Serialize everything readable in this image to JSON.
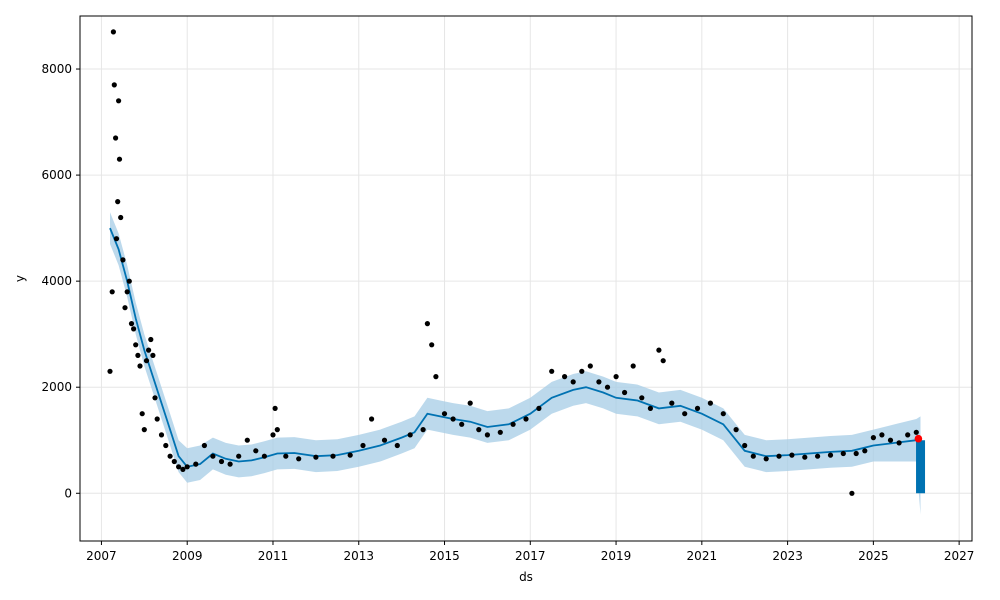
{
  "chart_data": {
    "type": "line",
    "title": "",
    "xlabel": "ds",
    "ylabel": "y",
    "xlim": [
      2006.5,
      2027.3
    ],
    "ylim": [
      -900,
      9000
    ],
    "x_ticks": [
      2007,
      2009,
      2011,
      2013,
      2015,
      2017,
      2019,
      2021,
      2023,
      2025,
      2027
    ],
    "y_ticks": [
      0,
      2000,
      4000,
      6000,
      8000
    ],
    "grid": true,
    "legend": "none",
    "colors": {
      "observed": "#000000",
      "forecast": "#0072B2",
      "uncertainty": "#A6CCE6",
      "highlight": "#FF0000",
      "grid": "#E6E6E6"
    },
    "series": [
      {
        "role": "forecast",
        "x": [
          2007.2,
          2007.4,
          2007.6,
          2007.8,
          2008.0,
          2008.2,
          2008.4,
          2008.6,
          2008.8,
          2009.0,
          2009.3,
          2009.6,
          2009.9,
          2010.2,
          2010.5,
          2010.8,
          2011.1,
          2011.5,
          2012.0,
          2012.5,
          2013.0,
          2013.5,
          2014.0,
          2014.3,
          2014.6,
          2014.9,
          2015.2,
          2015.6,
          2016.0,
          2016.5,
          2017.0,
          2017.5,
          2018.0,
          2018.3,
          2018.7,
          2019.0,
          2019.5,
          2020.0,
          2020.5,
          2021.0,
          2021.5,
          2022.0,
          2022.5,
          2023.0,
          2023.5,
          2024.0,
          2024.5,
          2025.0,
          2025.5,
          2026.0,
          2026.1
        ],
        "y": [
          5000,
          4600,
          4000,
          3300,
          2700,
          2200,
          1700,
          1200,
          700,
          500,
          550,
          750,
          650,
          600,
          620,
          680,
          750,
          760,
          700,
          720,
          800,
          900,
          1050,
          1150,
          1500,
          1450,
          1400,
          1350,
          1250,
          1300,
          1500,
          1800,
          1950,
          2000,
          1900,
          1800,
          1750,
          1600,
          1650,
          1500,
          1300,
          800,
          700,
          720,
          750,
          780,
          800,
          900,
          950,
          1000,
          1000
        ]
      },
      {
        "role": "uncertainty_upper",
        "x": [
          2007.2,
          2007.4,
          2007.6,
          2007.8,
          2008.0,
          2008.2,
          2008.4,
          2008.6,
          2008.8,
          2009.0,
          2009.3,
          2009.6,
          2009.9,
          2010.2,
          2010.5,
          2010.8,
          2011.1,
          2011.5,
          2012.0,
          2012.5,
          2013.0,
          2013.5,
          2014.0,
          2014.3,
          2014.6,
          2014.9,
          2015.2,
          2015.6,
          2016.0,
          2016.5,
          2017.0,
          2017.5,
          2018.0,
          2018.3,
          2018.7,
          2019.0,
          2019.5,
          2020.0,
          2020.5,
          2021.0,
          2021.5,
          2022.0,
          2022.5,
          2023.0,
          2023.5,
          2024.0,
          2024.5,
          2025.0,
          2025.5,
          2026.0,
          2026.1
        ],
        "y": [
          5300,
          4900,
          4300,
          3600,
          3000,
          2500,
          2000,
          1500,
          1000,
          850,
          900,
          1050,
          950,
          900,
          920,
          980,
          1050,
          1060,
          1000,
          1020,
          1100,
          1200,
          1350,
          1450,
          1800,
          1750,
          1700,
          1650,
          1550,
          1600,
          1800,
          2100,
          2250,
          2300,
          2200,
          2100,
          2050,
          1900,
          1950,
          1800,
          1600,
          1100,
          1000,
          1020,
          1050,
          1080,
          1100,
          1200,
          1300,
          1400,
          1450
        ]
      },
      {
        "role": "uncertainty_lower",
        "x": [
          2007.2,
          2007.4,
          2007.6,
          2007.8,
          2008.0,
          2008.2,
          2008.4,
          2008.6,
          2008.8,
          2009.0,
          2009.3,
          2009.6,
          2009.9,
          2010.2,
          2010.5,
          2010.8,
          2011.1,
          2011.5,
          2012.0,
          2012.5,
          2013.0,
          2013.5,
          2014.0,
          2014.3,
          2014.6,
          2014.9,
          2015.2,
          2015.6,
          2016.0,
          2016.5,
          2017.0,
          2017.5,
          2018.0,
          2018.3,
          2018.7,
          2019.0,
          2019.5,
          2020.0,
          2020.5,
          2021.0,
          2021.5,
          2022.0,
          2022.5,
          2023.0,
          2023.5,
          2024.0,
          2024.5,
          2025.0,
          2025.5,
          2026.0,
          2026.1
        ],
        "y": [
          4700,
          4300,
          3700,
          3000,
          2400,
          1900,
          1400,
          900,
          400,
          200,
          250,
          450,
          350,
          300,
          320,
          380,
          450,
          460,
          400,
          420,
          500,
          600,
          750,
          850,
          1200,
          1150,
          1100,
          1050,
          950,
          1000,
          1200,
          1500,
          1650,
          1700,
          1600,
          1500,
          1450,
          1300,
          1350,
          1200,
          1000,
          500,
          400,
          420,
          450,
          480,
          500,
          600,
          600,
          600,
          -400
        ]
      },
      {
        "role": "observed",
        "x": [
          2007.2,
          2007.25,
          2007.28,
          2007.3,
          2007.33,
          2007.35,
          2007.38,
          2007.4,
          2007.42,
          2007.45,
          2007.5,
          2007.55,
          2007.6,
          2007.65,
          2007.7,
          2007.75,
          2007.8,
          2007.85,
          2007.9,
          2007.95,
          2008.0,
          2008.05,
          2008.1,
          2008.15,
          2008.2,
          2008.25,
          2008.3,
          2008.4,
          2008.5,
          2008.6,
          2008.7,
          2008.8,
          2008.9,
          2009.0,
          2009.2,
          2009.4,
          2009.6,
          2009.8,
          2010.0,
          2010.2,
          2010.4,
          2010.6,
          2010.8,
          2011.0,
          2011.05,
          2011.1,
          2011.3,
          2011.6,
          2012.0,
          2012.4,
          2012.8,
          2013.1,
          2013.3,
          2013.6,
          2013.9,
          2014.2,
          2014.5,
          2014.6,
          2014.7,
          2014.8,
          2015.0,
          2015.2,
          2015.4,
          2015.6,
          2015.8,
          2016.0,
          2016.3,
          2016.6,
          2016.9,
          2017.2,
          2017.5,
          2017.8,
          2018.0,
          2018.2,
          2018.4,
          2018.6,
          2018.8,
          2019.0,
          2019.2,
          2019.4,
          2019.6,
          2019.8,
          2020.0,
          2020.1,
          2020.3,
          2020.6,
          2020.9,
          2021.2,
          2021.5,
          2021.8,
          2022.0,
          2022.2,
          2022.5,
          2022.8,
          2023.1,
          2023.4,
          2023.7,
          2024.0,
          2024.3,
          2024.5,
          2024.6,
          2024.8,
          2025.0,
          2025.2,
          2025.4,
          2025.6,
          2025.8,
          2026.0
        ],
        "y": [
          2300,
          3800,
          8700,
          7700,
          6700,
          4800,
          5500,
          7400,
          6300,
          5200,
          4400,
          3500,
          3800,
          4000,
          3200,
          3100,
          2800,
          2600,
          2400,
          1500,
          1200,
          2500,
          2700,
          2900,
          2600,
          1800,
          1400,
          1100,
          900,
          700,
          600,
          500,
          450,
          500,
          550,
          900,
          700,
          600,
          550,
          700,
          1000,
          800,
          700,
          1100,
          1600,
          1200,
          700,
          650,
          680,
          700,
          720,
          900,
          1400,
          1000,
          900,
          1100,
          1200,
          3200,
          2800,
          2200,
          1500,
          1400,
          1300,
          1700,
          1200,
          1100,
          1150,
          1300,
          1400,
          1600,
          2300,
          2200,
          2100,
          2300,
          2400,
          2100,
          2000,
          2200,
          1900,
          2400,
          1800,
          1600,
          2700,
          2500,
          1700,
          1500,
          1600,
          1700,
          1500,
          1200,
          900,
          700,
          650,
          700,
          720,
          680,
          700,
          720,
          750,
          0,
          750,
          800,
          1050,
          1100,
          1000,
          950,
          1100,
          1150
        ]
      }
    ]
  }
}
